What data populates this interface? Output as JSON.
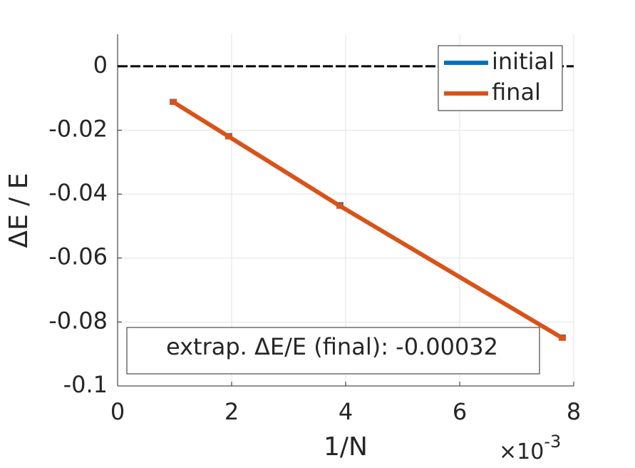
{
  "chart_data": {
    "type": "line",
    "x": [
      0.000977,
      0.00195,
      0.0039,
      0.0078
    ],
    "series": [
      {
        "name": "initial",
        "color": "#0072bd",
        "values": [
          -0.0111,
          -0.0218,
          -0.0434,
          -0.0848
        ]
      },
      {
        "name": "final",
        "color": "#d95319",
        "values": [
          -0.0112,
          -0.022,
          -0.0437,
          -0.085
        ]
      }
    ],
    "reference_line": {
      "y": 0,
      "color": "#000000"
    },
    "xlim": [
      0,
      0.008
    ],
    "xticks": [
      0,
      {
        "value": 0.002,
        "label": "2"
      },
      {
        "value": 0.004,
        "label": "4"
      },
      {
        "value": 0.006,
        "label": "6"
      },
      {
        "value": 0.008,
        "label": "8"
      }
    ],
    "x_exponent": {
      "base": "×10",
      "power": "-3"
    },
    "ylim": [
      -0.1,
      0.01
    ],
    "yticks": [
      -0.1,
      -0.08,
      -0.06,
      -0.04,
      -0.02,
      0
    ],
    "xlabel": "1/N",
    "ylabel": "ΔE / E",
    "annotation": "extrap. ΔE/E (final): -0.00032",
    "grid": true,
    "legend": "upper right"
  }
}
